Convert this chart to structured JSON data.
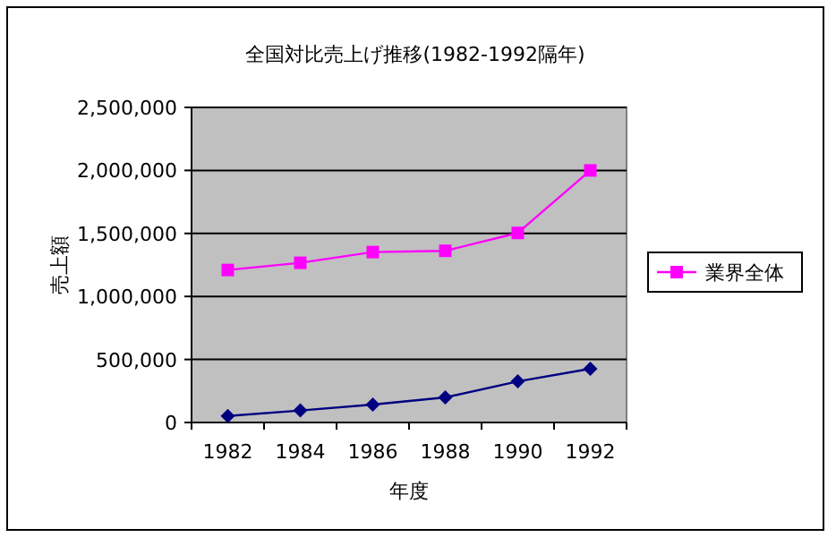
{
  "chart_data": {
    "type": "line",
    "title": "全国対比売上げ推移(1982-1992隔年)",
    "xlabel": "年度",
    "ylabel": "売上額",
    "categories": [
      "1982",
      "1984",
      "1986",
      "1988",
      "1990",
      "1992"
    ],
    "series": [
      {
        "color": "#000080",
        "marker": "diamond",
        "values": [
          52000,
          95000,
          142000,
          199000,
          326000,
          426000
        ]
      },
      {
        "name": "業界全体",
        "color": "#ff00ff",
        "marker": "square",
        "values": [
          1210000,
          1267000,
          1352000,
          1362000,
          1504000,
          2000000
        ]
      }
    ],
    "ylim": [
      0,
      2500000
    ],
    "yticks": [
      {
        "value": 0,
        "label": "0"
      },
      {
        "value": 500000,
        "label": "500,000"
      },
      {
        "value": 1000000,
        "label": "1,000,000"
      },
      {
        "value": 1500000,
        "label": "1,500,000"
      },
      {
        "value": 2000000,
        "label": "2,000,000"
      },
      {
        "value": 2500000,
        "label": "2,500,000"
      }
    ],
    "grid": "y",
    "legend": "right"
  }
}
